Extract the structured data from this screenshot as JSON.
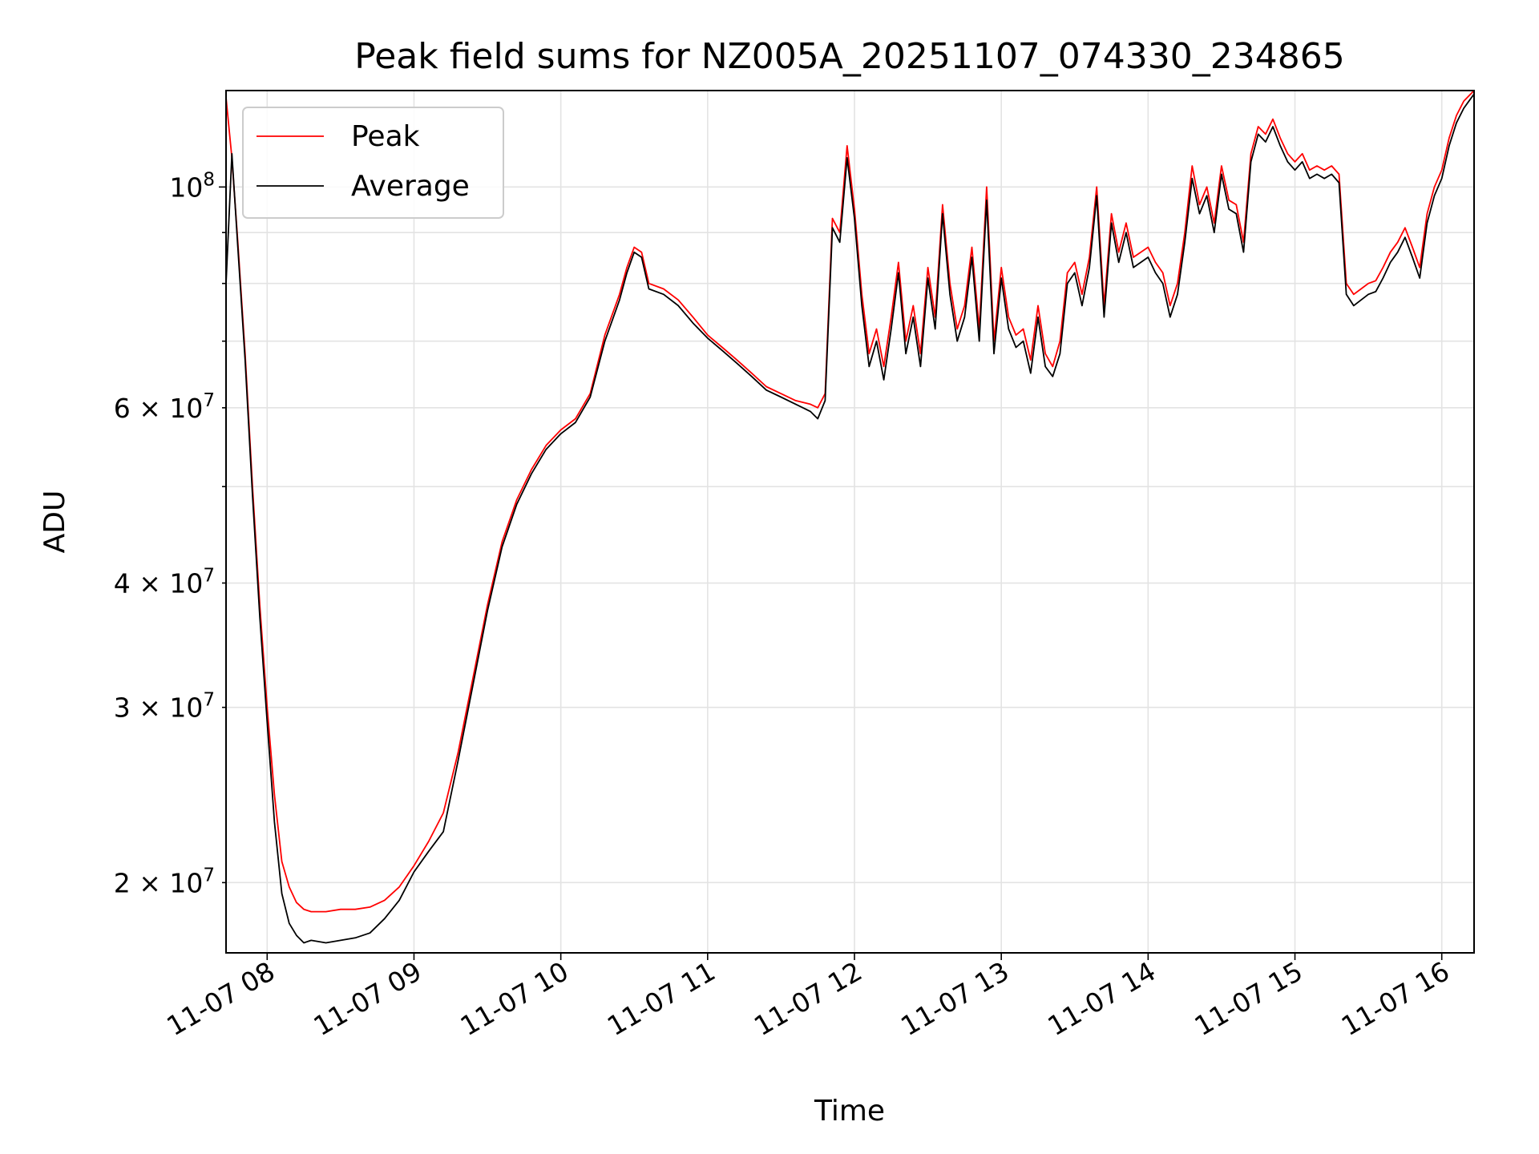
{
  "chart_data": {
    "type": "line",
    "title": "Peak field sums for NZ005A_20251107_074330_234865",
    "xlabel": "Time",
    "ylabel": "ADU",
    "yscale": "log",
    "ylim": [
      17000000,
      125000000
    ],
    "xlim_hours": [
      7.72,
      16.22
    ],
    "grid": true,
    "legend_position": "top-left",
    "x_ticks": [
      {
        "value": 8,
        "label": "11-07 08"
      },
      {
        "value": 9,
        "label": "11-07 09"
      },
      {
        "value": 10,
        "label": "11-07 10"
      },
      {
        "value": 11,
        "label": "11-07 11"
      },
      {
        "value": 12,
        "label": "11-07 12"
      },
      {
        "value": 13,
        "label": "11-07 13"
      },
      {
        "value": 14,
        "label": "11-07 14"
      },
      {
        "value": 15,
        "label": "11-07 15"
      },
      {
        "value": 16,
        "label": "11-07 16"
      }
    ],
    "y_major_ticks": [
      {
        "value": 100000000,
        "mant": "10",
        "exp": "8"
      }
    ],
    "y_minor_labeled_ticks": [
      {
        "value": 20000000,
        "mant": "2 × 10",
        "exp": "7"
      },
      {
        "value": 30000000,
        "mant": "3 × 10",
        "exp": "7"
      },
      {
        "value": 40000000,
        "mant": "4 × 10",
        "exp": "7"
      },
      {
        "value": 60000000,
        "mant": "6 × 10",
        "exp": "7"
      }
    ],
    "y_minor_unlabeled_ticks": [
      50000000,
      70000000,
      80000000,
      90000000
    ],
    "series": [
      {
        "name": "Peak",
        "color": "#ff0000",
        "x": [
          7.72,
          7.76,
          7.8,
          7.85,
          7.9,
          7.95,
          8.0,
          8.05,
          8.1,
          8.15,
          8.2,
          8.25,
          8.3,
          8.4,
          8.5,
          8.6,
          8.7,
          8.8,
          8.9,
          9.0,
          9.1,
          9.2,
          9.3,
          9.4,
          9.5,
          9.6,
          9.7,
          9.8,
          9.9,
          10.0,
          10.1,
          10.2,
          10.3,
          10.4,
          10.45,
          10.5,
          10.55,
          10.6,
          10.7,
          10.8,
          10.9,
          11.0,
          11.1,
          11.2,
          11.3,
          11.4,
          11.5,
          11.6,
          11.7,
          11.75,
          11.8,
          11.85,
          11.9,
          11.95,
          12.0,
          12.05,
          12.1,
          12.15,
          12.2,
          12.25,
          12.3,
          12.35,
          12.4,
          12.45,
          12.5,
          12.55,
          12.6,
          12.65,
          12.7,
          12.75,
          12.8,
          12.85,
          12.9,
          12.95,
          13.0,
          13.05,
          13.1,
          13.15,
          13.2,
          13.25,
          13.3,
          13.35,
          13.4,
          13.45,
          13.5,
          13.55,
          13.6,
          13.65,
          13.7,
          13.75,
          13.8,
          13.85,
          13.9,
          13.95,
          14.0,
          14.05,
          14.1,
          14.15,
          14.2,
          14.25,
          14.3,
          14.35,
          14.4,
          14.45,
          14.5,
          14.55,
          14.6,
          14.65,
          14.7,
          14.75,
          14.8,
          14.85,
          14.9,
          14.95,
          15.0,
          15.05,
          15.1,
          15.15,
          15.2,
          15.25,
          15.3,
          15.35,
          15.4,
          15.45,
          15.5,
          15.55,
          15.6,
          15.65,
          15.7,
          15.75,
          15.8,
          15.85,
          15.9,
          15.95,
          16.0,
          16.05,
          16.1,
          16.15,
          16.22
        ],
        "values": [
          123000000,
          107000000,
          88000000,
          68000000,
          50000000,
          38000000,
          30000000,
          24500000,
          21000000,
          19800000,
          19100000,
          18800000,
          18700000,
          18700000,
          18800000,
          18800000,
          18900000,
          19200000,
          19800000,
          20800000,
          22000000,
          23500000,
          27000000,
          32000000,
          38000000,
          44000000,
          48500000,
          52000000,
          55000000,
          57000000,
          58500000,
          62000000,
          71000000,
          78000000,
          83000000,
          87000000,
          86000000,
          80000000,
          79000000,
          77000000,
          74000000,
          71000000,
          69000000,
          67000000,
          65000000,
          63000000,
          62000000,
          61000000,
          60500000,
          60000000,
          62000000,
          93000000,
          90000000,
          110000000,
          95000000,
          78000000,
          68000000,
          72000000,
          66000000,
          74000000,
          84000000,
          70000000,
          76000000,
          68000000,
          83000000,
          74000000,
          96000000,
          80000000,
          72000000,
          76000000,
          87000000,
          72000000,
          100000000,
          70000000,
          83000000,
          74000000,
          71000000,
          72000000,
          67000000,
          76000000,
          68000000,
          66000000,
          70000000,
          82000000,
          84000000,
          78000000,
          85000000,
          100000000,
          76000000,
          94000000,
          86000000,
          92000000,
          85000000,
          86000000,
          87000000,
          84000000,
          82000000,
          76000000,
          80000000,
          90000000,
          105000000,
          96000000,
          100000000,
          92000000,
          105000000,
          97000000,
          96000000,
          88000000,
          108000000,
          115000000,
          113000000,
          117000000,
          112000000,
          108000000,
          106000000,
          108000000,
          104000000,
          105000000,
          104000000,
          105000000,
          103000000,
          80000000,
          78000000,
          79000000,
          80000000,
          80500000,
          83000000,
          86000000,
          88000000,
          91000000,
          87000000,
          83000000,
          94000000,
          100000000,
          104000000,
          112000000,
          118000000,
          122000000,
          125000000
        ]
      },
      {
        "name": "Average",
        "color": "#000000",
        "x": [
          7.72,
          7.76,
          7.8,
          7.85,
          7.9,
          7.95,
          8.0,
          8.05,
          8.1,
          8.15,
          8.2,
          8.25,
          8.3,
          8.4,
          8.5,
          8.6,
          8.7,
          8.8,
          8.9,
          9.0,
          9.1,
          9.2,
          9.3,
          9.4,
          9.5,
          9.6,
          9.7,
          9.8,
          9.9,
          10.0,
          10.1,
          10.2,
          10.3,
          10.4,
          10.45,
          10.5,
          10.55,
          10.6,
          10.7,
          10.8,
          10.9,
          11.0,
          11.1,
          11.2,
          11.3,
          11.4,
          11.5,
          11.6,
          11.7,
          11.75,
          11.8,
          11.85,
          11.9,
          11.95,
          12.0,
          12.05,
          12.1,
          12.15,
          12.2,
          12.25,
          12.3,
          12.35,
          12.4,
          12.45,
          12.5,
          12.55,
          12.6,
          12.65,
          12.7,
          12.75,
          12.8,
          12.85,
          12.9,
          12.95,
          13.0,
          13.05,
          13.1,
          13.15,
          13.2,
          13.25,
          13.3,
          13.35,
          13.4,
          13.45,
          13.5,
          13.55,
          13.6,
          13.65,
          13.7,
          13.75,
          13.8,
          13.85,
          13.9,
          13.95,
          14.0,
          14.05,
          14.1,
          14.15,
          14.2,
          14.25,
          14.3,
          14.35,
          14.4,
          14.45,
          14.5,
          14.55,
          14.6,
          14.65,
          14.7,
          14.75,
          14.8,
          14.85,
          14.9,
          14.95,
          15.0,
          15.05,
          15.1,
          15.15,
          15.2,
          15.25,
          15.3,
          15.35,
          15.4,
          15.45,
          15.5,
          15.55,
          15.6,
          15.65,
          15.7,
          15.75,
          15.8,
          15.85,
          15.9,
          15.95,
          16.0,
          16.05,
          16.1,
          16.15,
          16.22
        ],
        "values": [
          80000000,
          108000000,
          87000000,
          67000000,
          49000000,
          37000000,
          29000000,
          23000000,
          19500000,
          18200000,
          17700000,
          17400000,
          17500000,
          17400000,
          17500000,
          17600000,
          17800000,
          18400000,
          19200000,
          20500000,
          21500000,
          22500000,
          26500000,
          31500000,
          37500000,
          43500000,
          48000000,
          51500000,
          54500000,
          56500000,
          58000000,
          61500000,
          70000000,
          77000000,
          82000000,
          86000000,
          85000000,
          79000000,
          78000000,
          76000000,
          73000000,
          70500000,
          68500000,
          66500000,
          64500000,
          62500000,
          61500000,
          60500000,
          59500000,
          58500000,
          61000000,
          91000000,
          88000000,
          107000000,
          93000000,
          76000000,
          66000000,
          70000000,
          64000000,
          72000000,
          82000000,
          68000000,
          74000000,
          66000000,
          81000000,
          72000000,
          94000000,
          78000000,
          70000000,
          74000000,
          85000000,
          70000000,
          97000000,
          68000000,
          81000000,
          72000000,
          69000000,
          70000000,
          65000000,
          74000000,
          66000000,
          64500000,
          68000000,
          80000000,
          82000000,
          76000000,
          83000000,
          98000000,
          74000000,
          92000000,
          84000000,
          90000000,
          83000000,
          84000000,
          85000000,
          82000000,
          80000000,
          74000000,
          78000000,
          88000000,
          102000000,
          94000000,
          98000000,
          90000000,
          103000000,
          95000000,
          94000000,
          86000000,
          106000000,
          113000000,
          111000000,
          115000000,
          110000000,
          106000000,
          104000000,
          106000000,
          102000000,
          103000000,
          102000000,
          103000000,
          101000000,
          78000000,
          76000000,
          77000000,
          78000000,
          78500000,
          81000000,
          84000000,
          86000000,
          89000000,
          85000000,
          81000000,
          92000000,
          98000000,
          102000000,
          110000000,
          116000000,
          120000000,
          124000000
        ]
      }
    ]
  }
}
